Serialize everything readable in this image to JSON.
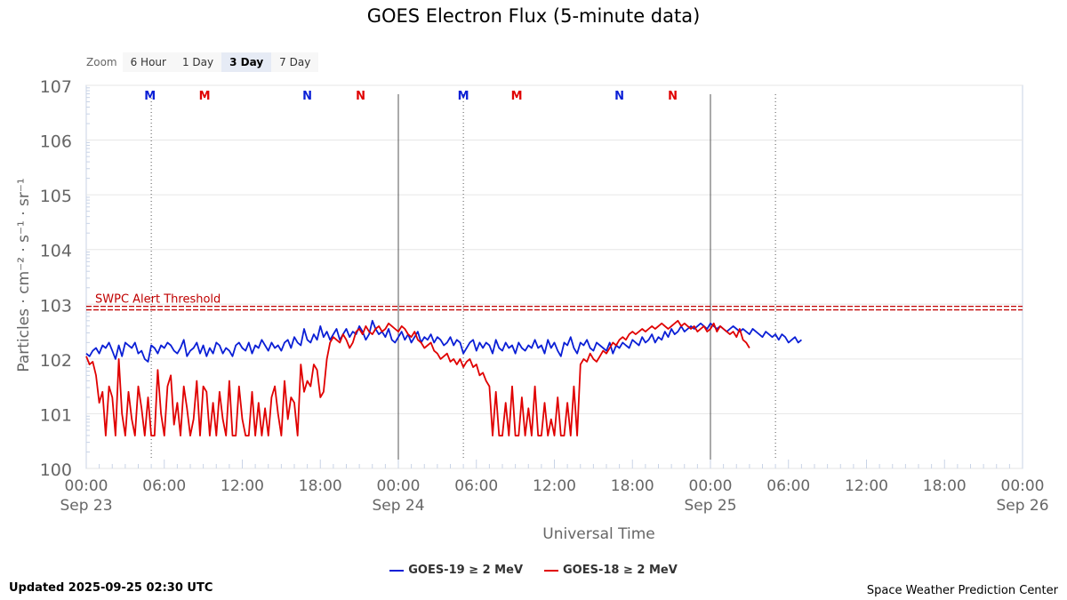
{
  "title": "GOES Electron Flux (5-minute data)",
  "zoom": {
    "label": "Zoom",
    "options": [
      "6 Hour",
      "1 Day",
      "3 Day",
      "7 Day"
    ],
    "selected": "3 Day"
  },
  "footer": {
    "updated": "Updated 2025-09-25 02:30 UTC",
    "credit": "Space Weather Prediction Center"
  },
  "colors": {
    "goes19": "#0a1fd6",
    "goes18": "#e00000",
    "threshold": "#c00000"
  },
  "chart_data": {
    "type": "line",
    "title": "GOES Electron Flux (5-minute data)",
    "xlabel": "Universal Time",
    "ylabel": "Particles · cm⁻² · s⁻¹ · sr⁻¹",
    "yscale": "log",
    "ylim_exp": [
      0,
      7
    ],
    "y_ticks": [
      {
        "base": "10",
        "exp": "0"
      },
      {
        "base": "10",
        "exp": "1"
      },
      {
        "base": "10",
        "exp": "2"
      },
      {
        "base": "10",
        "exp": "3"
      },
      {
        "base": "10",
        "exp": "4"
      },
      {
        "base": "10",
        "exp": "5"
      },
      {
        "base": "10",
        "exp": "6"
      },
      {
        "base": "10",
        "exp": "7"
      }
    ],
    "xlim_hours": [
      0,
      72
    ],
    "x_ticks": [
      {
        "h": 0,
        "time": "00:00",
        "date": "Sep 23"
      },
      {
        "h": 6,
        "time": "06:00",
        "date": ""
      },
      {
        "h": 12,
        "time": "12:00",
        "date": ""
      },
      {
        "h": 18,
        "time": "18:00",
        "date": ""
      },
      {
        "h": 24,
        "time": "00:00",
        "date": "Sep 24"
      },
      {
        "h": 30,
        "time": "06:00",
        "date": ""
      },
      {
        "h": 36,
        "time": "12:00",
        "date": ""
      },
      {
        "h": 42,
        "time": "18:00",
        "date": ""
      },
      {
        "h": 48,
        "time": "00:00",
        "date": "Sep 25"
      },
      {
        "h": 54,
        "time": "06:00",
        "date": ""
      },
      {
        "h": 60,
        "time": "12:00",
        "date": ""
      },
      {
        "h": 66,
        "time": "18:00",
        "date": ""
      },
      {
        "h": 72,
        "time": "00:00",
        "date": "Sep 26"
      }
    ],
    "day_lines_hours": [
      24,
      48
    ],
    "noon_midnight_markers": [
      {
        "h": 4.9,
        "label": "M",
        "sat": "goes19"
      },
      {
        "h": 9.1,
        "label": "M",
        "sat": "goes18"
      },
      {
        "h": 17.0,
        "label": "N",
        "sat": "goes19"
      },
      {
        "h": 21.1,
        "label": "N",
        "sat": "goes18"
      },
      {
        "h": 29.0,
        "label": "M",
        "sat": "goes19"
      },
      {
        "h": 33.1,
        "label": "M",
        "sat": "goes18"
      },
      {
        "h": 41.0,
        "label": "N",
        "sat": "goes19"
      },
      {
        "h": 45.1,
        "label": "N",
        "sat": "goes18"
      }
    ],
    "dotted_lines_hours": [
      5.0,
      29.0,
      53.0
    ],
    "threshold": {
      "label": "SWPC Alert Threshold",
      "exp": 2.93
    },
    "series": [
      {
        "name": "GOES-19 ≥ 2 MeV",
        "key": "goes19",
        "start_hour": 0,
        "step_hours": 0.25,
        "values_exp": [
          2.1,
          2.05,
          2.15,
          2.2,
          2.1,
          2.25,
          2.2,
          2.3,
          2.15,
          2.0,
          2.25,
          2.05,
          2.3,
          2.25,
          2.2,
          2.3,
          2.1,
          2.15,
          2.0,
          1.95,
          2.25,
          2.2,
          2.1,
          2.25,
          2.2,
          2.3,
          2.25,
          2.15,
          2.1,
          2.2,
          2.35,
          2.05,
          2.15,
          2.2,
          2.3,
          2.1,
          2.25,
          2.05,
          2.2,
          2.1,
          2.3,
          2.25,
          2.1,
          2.2,
          2.15,
          2.05,
          2.25,
          2.3,
          2.2,
          2.15,
          2.3,
          2.1,
          2.25,
          2.2,
          2.35,
          2.25,
          2.15,
          2.3,
          2.2,
          2.25,
          2.15,
          2.3,
          2.35,
          2.2,
          2.4,
          2.3,
          2.25,
          2.55,
          2.35,
          2.3,
          2.45,
          2.35,
          2.6,
          2.4,
          2.5,
          2.35,
          2.45,
          2.55,
          2.35,
          2.45,
          2.55,
          2.4,
          2.5,
          2.45,
          2.6,
          2.5,
          2.35,
          2.45,
          2.7,
          2.55,
          2.45,
          2.5,
          2.4,
          2.55,
          2.35,
          2.3,
          2.4,
          2.5,
          2.35,
          2.45,
          2.3,
          2.4,
          2.5,
          2.3,
          2.4,
          2.35,
          2.45,
          2.3,
          2.4,
          2.35,
          2.25,
          2.3,
          2.4,
          2.25,
          2.35,
          2.3,
          2.1,
          2.2,
          2.3,
          2.35,
          2.15,
          2.3,
          2.2,
          2.3,
          2.25,
          2.1,
          2.35,
          2.2,
          2.15,
          2.3,
          2.2,
          2.25,
          2.1,
          2.3,
          2.2,
          2.15,
          2.25,
          2.2,
          2.35,
          2.2,
          2.25,
          2.1,
          2.35,
          2.2,
          2.3,
          2.15,
          2.05,
          2.3,
          2.25,
          2.4,
          2.2,
          2.1,
          2.3,
          2.25,
          2.35,
          2.2,
          2.15,
          2.3,
          2.25,
          2.2,
          2.15,
          2.3,
          2.1,
          2.25,
          2.2,
          2.3,
          2.25,
          2.2,
          2.35,
          2.3,
          2.25,
          2.4,
          2.3,
          2.35,
          2.45,
          2.3,
          2.4,
          2.35,
          2.5,
          2.4,
          2.55,
          2.45,
          2.5,
          2.6,
          2.5,
          2.55,
          2.6,
          2.55,
          2.6,
          2.65,
          2.6,
          2.55,
          2.65,
          2.6,
          2.55,
          2.6,
          2.55,
          2.5,
          2.55,
          2.6,
          2.55,
          2.5,
          2.55,
          2.5,
          2.45,
          2.55,
          2.5,
          2.45,
          2.4,
          2.5,
          2.45,
          2.4,
          2.45,
          2.35,
          2.45,
          2.4,
          2.3,
          2.35,
          2.4,
          2.3,
          2.35
        ]
      },
      {
        "name": "GOES-18 ≥ 2 MeV",
        "key": "goes18",
        "start_hour": 0,
        "step_hours": 0.25,
        "values_exp": [
          2.05,
          1.9,
          1.95,
          1.7,
          1.2,
          1.4,
          0.6,
          1.5,
          1.3,
          0.6,
          2.0,
          1.0,
          0.6,
          1.4,
          0.9,
          0.6,
          1.5,
          1.1,
          0.6,
          1.3,
          0.6,
          0.6,
          1.8,
          1.0,
          0.6,
          1.5,
          1.7,
          0.8,
          1.2,
          0.6,
          1.5,
          1.1,
          0.6,
          0.9,
          1.6,
          0.6,
          1.5,
          1.4,
          0.6,
          1.2,
          0.6,
          1.4,
          0.9,
          0.6,
          1.6,
          0.6,
          0.6,
          1.5,
          0.9,
          0.6,
          0.6,
          1.4,
          0.6,
          1.2,
          0.6,
          1.1,
          0.6,
          1.3,
          1.5,
          1.0,
          0.6,
          1.6,
          0.9,
          1.3,
          1.2,
          0.6,
          1.9,
          1.4,
          1.6,
          1.5,
          1.9,
          1.8,
          1.3,
          1.4,
          2.0,
          2.3,
          2.4,
          2.35,
          2.3,
          2.45,
          2.35,
          2.2,
          2.3,
          2.5,
          2.55,
          2.45,
          2.6,
          2.5,
          2.45,
          2.55,
          2.6,
          2.5,
          2.55,
          2.65,
          2.6,
          2.55,
          2.5,
          2.6,
          2.55,
          2.45,
          2.4,
          2.5,
          2.35,
          2.3,
          2.2,
          2.25,
          2.3,
          2.15,
          2.1,
          2.0,
          2.05,
          2.1,
          1.95,
          2.0,
          1.9,
          2.0,
          1.85,
          1.95,
          2.0,
          1.85,
          1.9,
          1.7,
          1.75,
          1.6,
          1.5,
          0.6,
          1.4,
          0.6,
          0.6,
          1.2,
          0.6,
          1.5,
          0.6,
          0.6,
          1.3,
          0.6,
          1.1,
          0.6,
          1.5,
          0.6,
          0.6,
          1.2,
          0.6,
          0.9,
          0.6,
          1.3,
          0.6,
          0.6,
          1.2,
          0.6,
          1.5,
          0.6,
          1.9,
          2.0,
          1.95,
          2.1,
          2.0,
          1.95,
          2.05,
          2.15,
          2.1,
          2.2,
          2.3,
          2.25,
          2.35,
          2.4,
          2.35,
          2.45,
          2.5,
          2.45,
          2.5,
          2.55,
          2.5,
          2.55,
          2.6,
          2.55,
          2.6,
          2.65,
          2.6,
          2.55,
          2.6,
          2.65,
          2.7,
          2.6,
          2.65,
          2.6,
          2.55,
          2.6,
          2.5,
          2.55,
          2.6,
          2.5,
          2.55,
          2.65,
          2.5,
          2.6,
          2.55,
          2.5,
          2.45,
          2.5,
          2.4,
          2.55,
          2.35,
          2.3,
          2.2
        ]
      }
    ]
  }
}
